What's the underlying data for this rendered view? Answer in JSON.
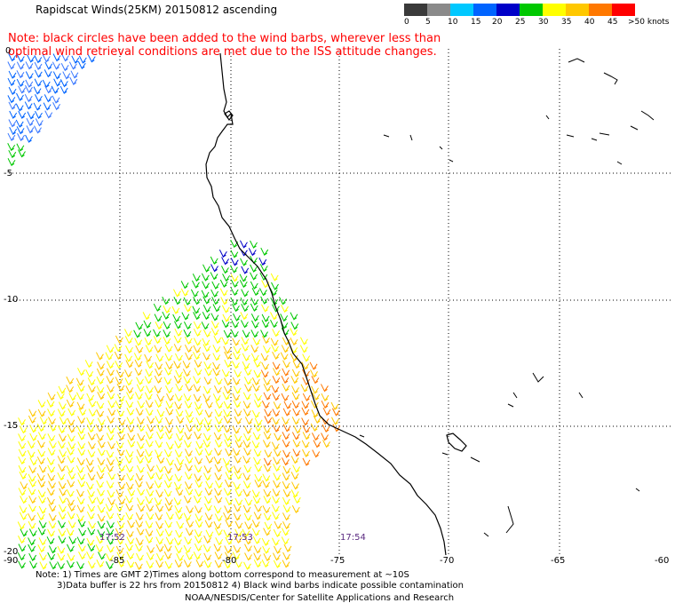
{
  "title": "Rapidscat Winds(25KM) 20150812 ascending",
  "note": "Note: black circles have been added to the wind barbs, wherever less than\n optimal wind retrieval conditions are met due to the ISS attitude changes.",
  "legend": {
    "unit": "knots",
    "colors": [
      "#3a3a3a",
      "#8a8a8a",
      "#00c8ff",
      "#0064ff",
      "#0000c8",
      "#00c800",
      "#ffff00",
      "#ffc800",
      "#ff7800",
      "#ff0000",
      "#b40000",
      "#ff00ff",
      "#a000ff",
      "#5a0078"
    ],
    "labels": [
      "0",
      "5",
      "10",
      "15",
      "20",
      "25",
      "30",
      "35",
      "40",
      "45",
      ">50 knots"
    ]
  },
  "axes": {
    "x_labels": [
      "-90",
      "-85",
      "-80",
      "-75",
      "-70",
      "-65",
      "-60"
    ],
    "y_labels": [
      "0",
      "-5",
      "-10",
      "-15",
      "-20"
    ]
  },
  "times": [
    "17:52",
    "17:53",
    "17:54"
  ],
  "footer": {
    "line1": "Note: 1) Times are GMT 2)Times along bottom correspond to measurement at ~10S",
    "line2": "3)Data buffer is 22 hrs from 20150812 4) Black wind barbs indicate possible contamination",
    "line3": "NOAA/NESDIS/Center for Satellite Applications and Research"
  }
}
